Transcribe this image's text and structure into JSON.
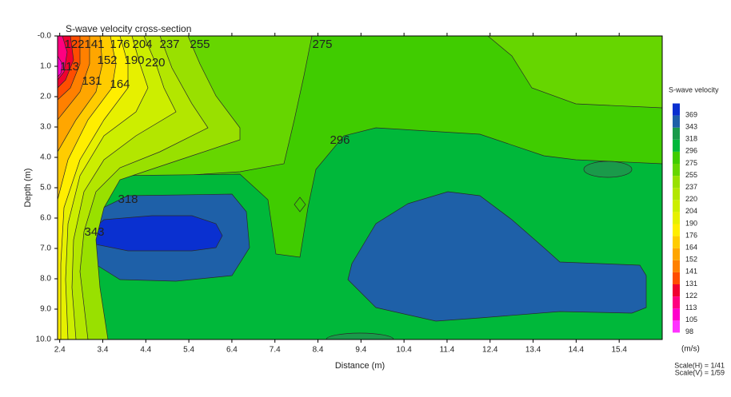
{
  "chart_data": {
    "type": "contour",
    "title": "S-wave velocity cross-section",
    "x_label": "Distance (m)",
    "y_label": "Depth (m)",
    "xlim": [
      2.35,
      16.4
    ],
    "xticks": [
      2.4,
      3.4,
      4.4,
      5.4,
      6.4,
      7.4,
      8.4,
      9.4,
      10.4,
      11.4,
      12.4,
      13.4,
      14.4,
      15.4
    ],
    "ylim": [
      0,
      10
    ],
    "y_inverted": true,
    "yticks": [
      {
        "value": 0,
        "label": "-0.0"
      },
      {
        "value": 1,
        "label": "1.0"
      },
      {
        "value": 2,
        "label": "2.0"
      },
      {
        "value": 3,
        "label": "3.0"
      },
      {
        "value": 4,
        "label": "4.0"
      },
      {
        "value": 5,
        "label": "5.0"
      },
      {
        "value": 6,
        "label": "6.0"
      },
      {
        "value": 7,
        "label": "7.0"
      },
      {
        "value": 8,
        "label": "8.0"
      },
      {
        "value": 9,
        "label": "9.0"
      },
      {
        "value": 10,
        "label": "10.0"
      }
    ],
    "colorbar": {
      "title": "S-wave velocity",
      "unit": "(m/s)",
      "levels": [
        98,
        105,
        113,
        122,
        131,
        141,
        152,
        164,
        176,
        190,
        204,
        220,
        237,
        255,
        275,
        296,
        318,
        343,
        369
      ],
      "colors": [
        "#ff33ff",
        "#ff00cc",
        "#ff0080",
        "#f00030",
        "#ff4d00",
        "#ff8000",
        "#ffa600",
        "#ffcc00",
        "#ffee00",
        "#e6f000",
        "#ccee00",
        "#b3e600",
        "#99e000",
        "#66d600",
        "#40cc00",
        "#00b83a",
        "#1a9a4a",
        "#1e60a8",
        "#0a30d0"
      ]
    },
    "contour_labels": [
      122,
      141,
      176,
      204,
      237,
      255,
      275,
      113,
      152,
      190,
      220,
      131,
      164,
      296,
      318,
      343
    ]
  },
  "footer": {
    "scale_labels": [
      "Scale(H) = 1/41",
      "Scale(V) = 1/59"
    ]
  }
}
